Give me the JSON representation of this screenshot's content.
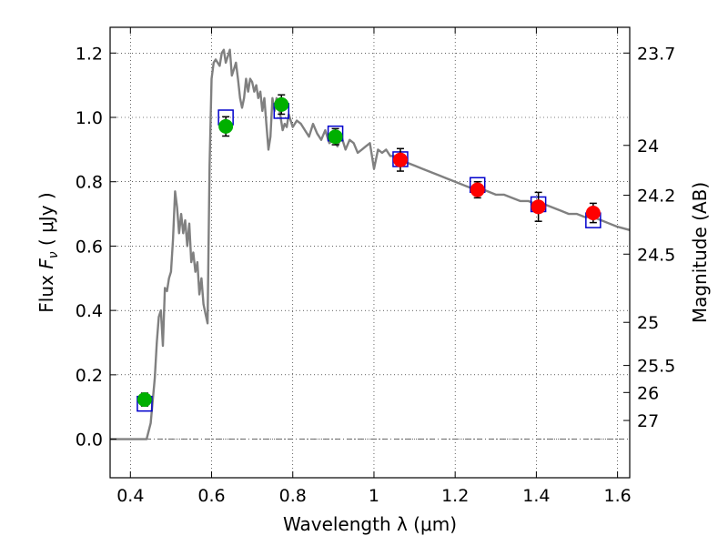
{
  "chart_data": {
    "type": "scatter",
    "title": "",
    "xlabel": "Wavelength  λ (μm)",
    "ylabel": "Flux  F_ν  ( μJy )",
    "ylabel_right": "Magnitude (AB)",
    "xlim": [
      0.35,
      1.63
    ],
    "ylim": [
      -0.12,
      1.28
    ],
    "grid": true,
    "x_ticks": [
      0.4,
      0.6,
      0.8,
      1.0,
      1.2,
      1.4,
      1.6
    ],
    "x_tick_labels": [
      "0.4",
      "0.6",
      "0.8",
      "1",
      "1.2",
      "1.4",
      "1.6"
    ],
    "y_ticks": [
      0.0,
      0.2,
      0.4,
      0.6,
      0.8,
      1.0,
      1.2
    ],
    "y_tick_labels": [
      "0.0",
      "0.2",
      "0.4",
      "0.6",
      "0.8",
      "1.0",
      "1.2"
    ],
    "right_ticks": [
      {
        "label": "23.7",
        "flux": 1.2
      },
      {
        "label": "24",
        "flux": 0.913
      },
      {
        "label": "24.2",
        "flux": 0.758
      },
      {
        "label": "24.5",
        "flux": 0.575
      },
      {
        "label": "25",
        "flux": 0.363
      },
      {
        "label": "25.5",
        "flux": 0.229
      },
      {
        "label": "26",
        "flux": 0.145
      },
      {
        "label": "27",
        "flux": 0.058
      }
    ],
    "colors": {
      "model": "#808080",
      "optical_points": "#00b000",
      "nir_points": "#ff0000",
      "model_boxes": "#0000cc",
      "errorbar": "#000000"
    },
    "series": [
      {
        "kind": "model_sed_line",
        "x": [
          0.35,
          0.43,
          0.44,
          0.45,
          0.46,
          0.465,
          0.47,
          0.475,
          0.48,
          0.485,
          0.49,
          0.495,
          0.5,
          0.505,
          0.51,
          0.515,
          0.52,
          0.525,
          0.53,
          0.535,
          0.54,
          0.545,
          0.55,
          0.555,
          0.56,
          0.565,
          0.57,
          0.575,
          0.58,
          0.585,
          0.59,
          0.595,
          0.6,
          0.605,
          0.61,
          0.615,
          0.62,
          0.625,
          0.63,
          0.635,
          0.64,
          0.645,
          0.65,
          0.655,
          0.66,
          0.665,
          0.67,
          0.675,
          0.68,
          0.685,
          0.69,
          0.695,
          0.7,
          0.705,
          0.71,
          0.715,
          0.72,
          0.725,
          0.73,
          0.735,
          0.74,
          0.745,
          0.75,
          0.755,
          0.76,
          0.765,
          0.77,
          0.775,
          0.78,
          0.785,
          0.79,
          0.8,
          0.81,
          0.82,
          0.83,
          0.84,
          0.85,
          0.86,
          0.87,
          0.88,
          0.89,
          0.9,
          0.91,
          0.92,
          0.93,
          0.94,
          0.95,
          0.96,
          0.97,
          0.98,
          0.99,
          1.0,
          1.01,
          1.02,
          1.03,
          1.04,
          1.06,
          1.08,
          1.1,
          1.12,
          1.14,
          1.16,
          1.18,
          1.2,
          1.22,
          1.24,
          1.26,
          1.28,
          1.3,
          1.32,
          1.34,
          1.36,
          1.38,
          1.4,
          1.42,
          1.44,
          1.46,
          1.48,
          1.5,
          1.52,
          1.54,
          1.56,
          1.58,
          1.6,
          1.63
        ],
        "y": [
          0.0,
          0.0,
          0.0,
          0.05,
          0.19,
          0.3,
          0.38,
          0.4,
          0.29,
          0.47,
          0.46,
          0.5,
          0.52,
          0.62,
          0.77,
          0.72,
          0.64,
          0.7,
          0.64,
          0.68,
          0.6,
          0.67,
          0.55,
          0.58,
          0.52,
          0.55,
          0.45,
          0.5,
          0.42,
          0.39,
          0.36,
          0.85,
          1.12,
          1.17,
          1.18,
          1.17,
          1.16,
          1.2,
          1.21,
          1.17,
          1.19,
          1.21,
          1.13,
          1.15,
          1.17,
          1.12,
          1.06,
          1.03,
          1.06,
          1.12,
          1.08,
          1.12,
          1.11,
          1.08,
          1.1,
          1.06,
          1.08,
          1.02,
          1.06,
          0.98,
          0.9,
          0.94,
          1.06,
          1.02,
          1.06,
          1.04,
          1.0,
          0.96,
          0.98,
          0.97,
          1.01,
          0.97,
          0.99,
          0.98,
          0.96,
          0.94,
          0.98,
          0.95,
          0.93,
          0.96,
          0.92,
          0.93,
          0.91,
          0.94,
          0.9,
          0.93,
          0.92,
          0.89,
          0.9,
          0.91,
          0.92,
          0.84,
          0.9,
          0.89,
          0.9,
          0.88,
          0.88,
          0.86,
          0.85,
          0.84,
          0.83,
          0.82,
          0.81,
          0.8,
          0.79,
          0.78,
          0.78,
          0.77,
          0.76,
          0.76,
          0.75,
          0.74,
          0.74,
          0.73,
          0.73,
          0.72,
          0.71,
          0.7,
          0.7,
          0.69,
          0.69,
          0.68,
          0.67,
          0.66,
          0.65
        ]
      },
      {
        "kind": "model_box_markers",
        "x": [
          0.435,
          0.635,
          0.772,
          0.905,
          1.065,
          1.255,
          1.405,
          1.54
        ],
        "y": [
          0.11,
          1.0,
          1.02,
          0.95,
          0.87,
          0.79,
          0.73,
          0.68
        ]
      },
      {
        "kind": "optical_observed",
        "x": [
          0.435,
          0.635,
          0.772,
          0.905
        ],
        "y": [
          0.123,
          0.972,
          1.04,
          0.94
        ],
        "yerr": [
          0.02,
          0.03,
          0.03,
          0.025
        ]
      },
      {
        "kind": "nir_observed",
        "x": [
          1.065,
          1.255,
          1.405,
          1.54
        ],
        "y": [
          0.868,
          0.775,
          0.722,
          0.703
        ],
        "yerr": [
          0.035,
          0.025,
          0.045,
          0.03
        ]
      }
    ]
  }
}
